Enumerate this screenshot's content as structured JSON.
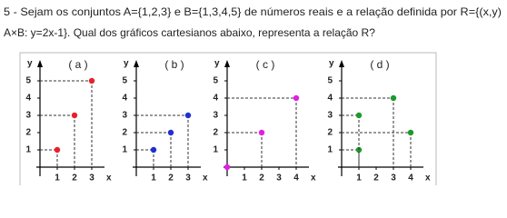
{
  "question": {
    "line1": "5 - Sejam os conjuntos A={1,2,3} e B={1,3,4,5} de números reais e a relação definida por R={(x,y)",
    "line2": "A×B: y=2x-1}. Qual dos gráficos cartesianos abaixo, representa a relação R?"
  },
  "graphs": [
    {
      "label": "( a )",
      "y_axis": "y",
      "x_axis": "x",
      "xticks": [
        1,
        2,
        3
      ],
      "yticks": [
        1,
        2,
        3,
        4,
        5
      ],
      "color": "#e8202a",
      "points": [
        {
          "x": 1,
          "y": 1
        },
        {
          "x": 2,
          "y": 3
        },
        {
          "x": 3,
          "y": 5
        }
      ]
    },
    {
      "label": "( b )",
      "y_axis": "y",
      "x_axis": "x",
      "xticks": [
        1,
        2,
        3
      ],
      "yticks": [
        1,
        2,
        3,
        4,
        5
      ],
      "color": "#2030d0",
      "points": [
        {
          "x": 1,
          "y": 1
        },
        {
          "x": 2,
          "y": 2
        },
        {
          "x": 3,
          "y": 3
        }
      ]
    },
    {
      "label": "( c )",
      "y_axis": "y",
      "x_axis": "x",
      "xticks": [
        1,
        2,
        3,
        4
      ],
      "yticks": [
        1,
        2,
        3,
        4,
        5
      ],
      "color": "#e020e0",
      "points": [
        {
          "x": 0,
          "y": 0
        },
        {
          "x": 2,
          "y": 2
        },
        {
          "x": 4,
          "y": 4
        }
      ]
    },
    {
      "label": "( d )",
      "y_axis": "y",
      "x_axis": "x",
      "xticks": [
        1,
        2,
        3,
        4
      ],
      "yticks": [
        1,
        2,
        3,
        4,
        5
      ],
      "color": "#1e9a2a",
      "points": [
        {
          "x": 1,
          "y": 1
        },
        {
          "x": 1,
          "y": 3
        },
        {
          "x": 3,
          "y": 4
        },
        {
          "x": 4,
          "y": 2
        }
      ]
    }
  ]
}
